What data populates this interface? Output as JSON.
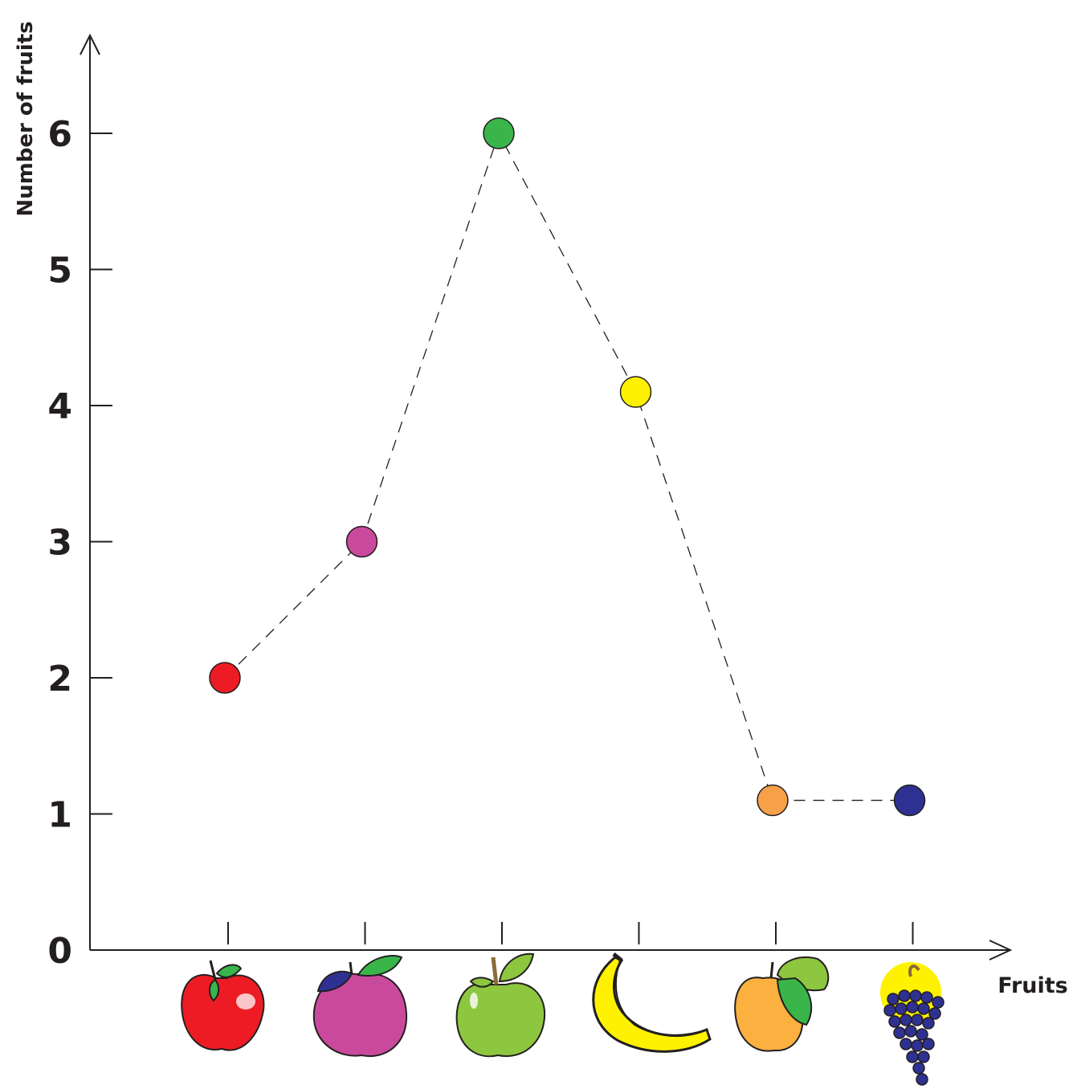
{
  "chart_data": {
    "type": "line",
    "title": "",
    "xlabel": "Fruits",
    "ylabel": "Number of fruits",
    "yticks": [
      "0",
      "1",
      "2",
      "3",
      "4",
      "5",
      "6"
    ],
    "ylim": [
      0,
      6.8
    ],
    "line_style": "dashed",
    "grid": false,
    "categories": [
      "red-apple",
      "plum",
      "green-apple",
      "banana",
      "peach",
      "grapes"
    ],
    "values": [
      2,
      3,
      6,
      4.1,
      1.1,
      1.1
    ],
    "point_colors": [
      "#ed1c24",
      "#c94a9c",
      "#39b54a",
      "#fff200",
      "#f7a04a",
      "#2e3192"
    ]
  }
}
